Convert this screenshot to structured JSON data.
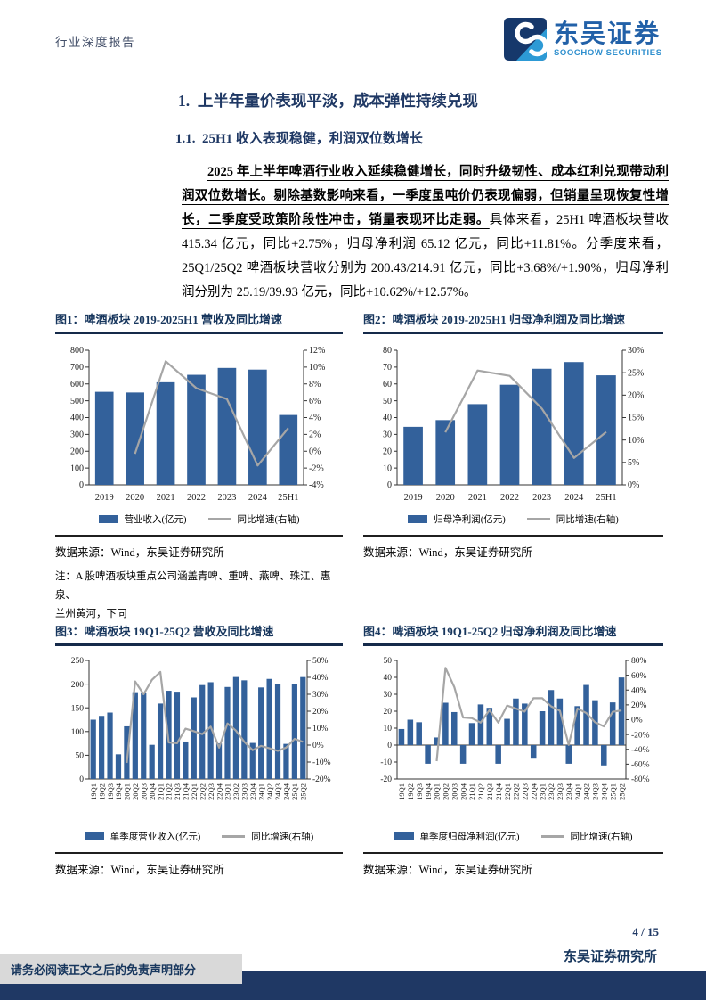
{
  "header": {
    "report_type": "行业深度报告",
    "brand_cn": "东吴证券",
    "brand_en": "SOOCHOW SECURITIES"
  },
  "section": {
    "h1": "1.  上半年量价表现平淡，成本弹性持续兑现",
    "h2": "1.1.  25H1 收入表现稳健，利润双位数增长"
  },
  "paragraph": {
    "lead": "2025 年上半年啤酒行业收入延续稳健增长，同时升级韧性、成本红利兑现带动利润双位数增长。剔除基数影响来看，一季度虽吨价仍表现偏弱，但销量呈现恢复性增长，二季度受政策阶段性冲击，销量表现环比走弱。",
    "rest": "具体来看，25H1 啤酒板块营收 415.34 亿元，同比+2.75%，归母净利润 65.12 亿元，同比+11.81%。分季度来看，25Q1/25Q2 啤酒板块营收分别为 200.43/214.91 亿元，同比+3.68%/+1.90%，归母净利润分别为 25.19/39.93 亿元，同比+10.62%/+12.57%。"
  },
  "figures": [
    {
      "caption": "图1：啤酒板块 2019-2025H1 营收及同比增速",
      "source": "数据来源：Wind，东吴证券研究所",
      "note_line1": "注：A 股啤酒板块重点公司涵盖青啤、重啤、燕啤、珠江、惠泉、",
      "note_line2": "兰州黄河，下同"
    },
    {
      "caption": "图2：啤酒板块 2019-2025H1 归母净利润及同比增速",
      "source": "数据来源：Wind，东吴证券研究所"
    },
    {
      "caption": "图3：啤酒板块 19Q1-25Q2 营收及同比增速",
      "source": "数据来源：Wind，东吴证券研究所"
    },
    {
      "caption": "图4：啤酒板块 19Q1-25Q2 归母净利润及同比增速",
      "source": "数据来源：Wind，东吴证券研究所"
    }
  ],
  "chart_data": [
    {
      "type": "bar",
      "title": "啤酒板块 2019-2025H1 营收及同比增速",
      "categories": [
        "2019",
        "2020",
        "2021",
        "2022",
        "2023",
        "2024",
        "25H1"
      ],
      "series": [
        {
          "name": "营业收入(亿元)",
          "type": "bar",
          "axis": "left",
          "values": [
            553,
            549,
            610,
            654,
            695,
            685,
            415.34
          ]
        },
        {
          "name": "同比增速(右轴)",
          "type": "line",
          "axis": "right",
          "values": [
            null,
            -0.3,
            10.7,
            7.5,
            6.2,
            -1.7,
            2.75
          ]
        }
      ],
      "left_axis": {
        "min": 0,
        "max": 800,
        "step": 100
      },
      "right_axis": {
        "min": -4,
        "max": 12,
        "step": 2,
        "suffix": "%"
      },
      "grid": false,
      "legend_position": "bottom"
    },
    {
      "type": "bar",
      "title": "啤酒板块 2019-2025H1 归母净利润及同比增速",
      "categories": [
        "2019",
        "2020",
        "2021",
        "2022",
        "2023",
        "2024",
        "25H1"
      ],
      "series": [
        {
          "name": "归母净利润(亿元)",
          "type": "bar",
          "axis": "left",
          "values": [
            34.5,
            38.5,
            48,
            59.5,
            69,
            73,
            65.12
          ]
        },
        {
          "name": "同比增速(右轴)",
          "type": "line",
          "axis": "right",
          "values": [
            null,
            11.7,
            25.5,
            24.3,
            17.0,
            6.0,
            11.81
          ]
        }
      ],
      "left_axis": {
        "min": 0,
        "max": 80,
        "step": 10
      },
      "right_axis": {
        "min": 0,
        "max": 30,
        "step": 5,
        "suffix": "%"
      },
      "grid": false,
      "legend_position": "bottom"
    },
    {
      "type": "bar",
      "title": "啤酒板块 19Q1-25Q2 营收及同比增速",
      "categories": [
        "19Q1",
        "19Q2",
        "19Q3",
        "19Q4",
        "20Q1",
        "20Q2",
        "20Q3",
        "20Q4",
        "21Q1",
        "21Q2",
        "21Q3",
        "21Q4",
        "22Q1",
        "22Q2",
        "22Q3",
        "22Q4",
        "23Q1",
        "23Q2",
        "23Q3",
        "23Q4",
        "24Q1",
        "24Q2",
        "24Q3",
        "24Q4",
        "25Q1",
        "25Q2"
      ],
      "series": [
        {
          "name": "单季度营业收入(亿元)",
          "type": "bar",
          "axis": "left",
          "values": [
            125,
            133,
            140,
            52,
            111,
            183,
            182,
            72,
            159,
            186,
            184,
            79,
            172,
            198,
            204,
            75,
            194,
            215,
            208,
            76,
            193,
            211,
            201,
            74,
            200.43,
            214.91
          ]
        },
        {
          "name": "同比增速(右轴)",
          "type": "line",
          "axis": "right",
          "values": [
            null,
            null,
            null,
            null,
            -10.5,
            37.6,
            30.0,
            38.5,
            43.2,
            1.6,
            1.1,
            9.7,
            8.2,
            6.5,
            10.9,
            -1.5,
            12.8,
            8.6,
            2.0,
            -3.0,
            -0.5,
            -1.9,
            -3.4,
            -1.5,
            3.68,
            1.9
          ]
        }
      ],
      "left_axis": {
        "min": 0,
        "max": 250,
        "step": 50
      },
      "right_axis": {
        "min": -20,
        "max": 50,
        "step": 10,
        "suffix": "%"
      },
      "grid": false,
      "legend_position": "bottom",
      "rotated_x_labels": true
    },
    {
      "type": "bar",
      "title": "啤酒板块 19Q1-25Q2 归母净利润及同比增速",
      "categories": [
        "19Q1",
        "19Q2",
        "19Q3",
        "19Q4",
        "20Q1",
        "20Q2",
        "20Q3",
        "20Q4",
        "21Q1",
        "21Q2",
        "21Q3",
        "21Q4",
        "22Q1",
        "22Q2",
        "22Q3",
        "22Q4",
        "23Q1",
        "23Q2",
        "23Q3",
        "23Q4",
        "24Q1",
        "24Q2",
        "24Q3",
        "24Q4",
        "25Q1",
        "25Q2"
      ],
      "series": [
        {
          "name": "单季度归母净利润(亿元)",
          "type": "bar",
          "axis": "left",
          "values": [
            9.5,
            15,
            13.5,
            -11,
            4.5,
            25,
            19.5,
            -11,
            13,
            24,
            22,
            -11,
            15.5,
            27.5,
            24.5,
            -8,
            20,
            32.5,
            27.5,
            -11,
            23,
            35.5,
            26.5,
            -12,
            25.19,
            39.93
          ]
        },
        {
          "name": "同比增速(右轴)",
          "type": "line",
          "axis": "right",
          "values": [
            null,
            null,
            null,
            null,
            -56,
            70,
            44,
            3,
            2,
            -4,
            13,
            -4,
            19,
            15,
            11,
            29,
            29,
            18,
            12,
            -34,
            15,
            9,
            -3.5,
            -9,
            10.62,
            12.57
          ]
        }
      ],
      "left_axis": {
        "min": -20,
        "max": 50,
        "step": 10
      },
      "right_axis": {
        "min": -80,
        "max": 80,
        "step": 20,
        "suffix": "%"
      },
      "grid": false,
      "legend_position": "bottom",
      "rotated_x_labels": true
    }
  ],
  "footer": {
    "page_number": "4 / 15",
    "institute": "东吴证券研究所",
    "disclaimer": "请务必阅读正文之后的免责声明部分"
  },
  "colors": {
    "navy_heading": "#1F3864",
    "caption_navy": "#17365D",
    "bar_blue": "#33619B",
    "line_gray": "#A6A6A6",
    "axis_color": "#333333",
    "brand_blue_cn": "#2261A8",
    "brand_blue_en": "#2E8FCE",
    "logo_navy": "#16386B",
    "logo_blue": "#2D9AD5",
    "header_label_color": "#44506A",
    "footer_bar_navy": "#1F3864",
    "disclaimer_bg": "#D9D9D9"
  }
}
